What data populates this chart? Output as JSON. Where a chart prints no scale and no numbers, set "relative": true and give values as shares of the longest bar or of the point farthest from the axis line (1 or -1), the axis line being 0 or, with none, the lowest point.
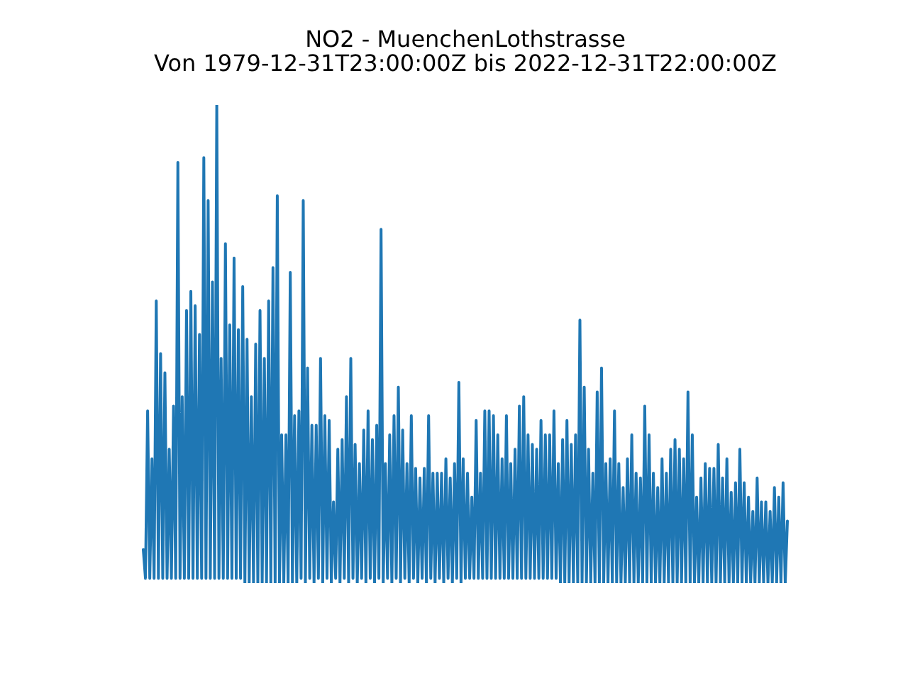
{
  "chart_data": {
    "type": "line",
    "title": "NO2 - MuenchenLothstrasse",
    "subtitle": "Von 1979-12-31T23:00:00Z bis 2022-12-31T22:00:00Z",
    "relative": true,
    "tick_labels": false,
    "color": "#1f77b4",
    "categories": [
      null,
      null,
      null,
      null,
      null,
      null,
      null,
      null,
      null,
      null,
      null,
      null,
      null,
      null,
      null,
      null,
      null,
      null,
      null,
      null,
      null,
      null,
      null,
      null,
      null,
      null,
      null,
      null,
      null,
      null,
      null,
      null,
      null,
      null,
      null,
      null,
      null,
      null,
      null,
      null,
      null,
      null,
      null,
      null,
      null,
      null,
      null,
      null,
      null,
      null,
      null,
      null,
      null,
      null,
      null,
      null,
      null,
      null,
      null,
      null,
      null,
      null,
      null,
      null,
      null,
      null,
      null,
      null,
      null,
      null,
      null,
      null,
      null,
      null,
      null,
      null,
      null,
      null,
      null,
      null,
      null,
      null,
      null,
      null,
      null,
      null,
      null,
      null,
      null,
      null,
      null,
      null,
      null,
      null,
      null,
      null,
      null,
      null,
      null,
      null,
      null,
      null,
      null,
      null,
      null,
      null,
      null,
      null,
      null,
      null,
      null,
      null,
      null,
      null,
      null,
      null,
      null,
      null,
      null,
      null,
      null,
      null,
      null,
      null,
      null,
      null,
      null,
      null,
      null,
      null,
      null,
      null,
      null,
      null,
      null,
      null,
      null,
      null,
      null,
      null,
      null,
      null,
      null,
      null,
      null,
      null,
      null,
      null,
      null,
      null,
      null,
      null,
      null,
      null,
      null,
      null,
      null,
      null,
      null,
      null,
      null,
      null,
      null,
      null,
      null,
      null,
      null,
      null,
      null,
      null,
      null,
      null,
      null,
      null,
      null,
      null,
      null,
      null,
      null,
      null,
      null,
      null,
      null,
      null,
      null,
      null,
      null,
      null,
      null,
      null,
      null,
      null,
      null,
      null,
      null,
      null,
      null,
      null,
      null,
      null,
      null,
      null,
      null,
      null,
      null,
      null,
      null,
      null,
      null,
      null,
      null,
      null,
      null,
      null,
      null,
      null,
      null,
      null,
      null,
      null,
      null,
      null,
      null,
      null,
      null,
      null,
      null,
      null,
      null,
      null,
      null,
      null,
      null,
      null,
      null,
      null,
      null,
      null,
      null,
      null,
      null,
      null,
      null,
      null,
      null,
      null,
      null,
      null,
      null,
      null,
      null,
      null,
      null,
      null,
      null,
      null,
      null,
      null,
      null,
      null,
      null,
      null,
      null,
      null,
      null,
      null,
      null,
      null,
      null,
      null,
      null,
      null,
      null,
      null,
      null,
      null,
      null,
      null,
      null,
      null,
      null,
      null,
      null,
      null,
      null,
      null,
      null,
      null,
      null,
      null,
      null,
      null,
      null,
      null,
      null,
      null,
      null,
      null,
      null
    ],
    "values": [
      0.07,
      0.01,
      0.36,
      0.01,
      0.26,
      0.01,
      0.59,
      0.01,
      0.48,
      0.01,
      0.44,
      0.01,
      0.28,
      0.01,
      0.37,
      0.01,
      0.88,
      0.01,
      0.39,
      0.01,
      0.57,
      0.01,
      0.61,
      0.01,
      0.58,
      0.01,
      0.52,
      0.01,
      0.89,
      0.01,
      0.8,
      0.01,
      0.63,
      0.01,
      1,
      0.01,
      0.47,
      0.01,
      0.71,
      0.01,
      0.54,
      0.01,
      0.68,
      0.01,
      0.53,
      0.01,
      0.62,
      0,
      0.51,
      0,
      0.39,
      0,
      0.5,
      0,
      0.57,
      0,
      0.47,
      0,
      0.59,
      0,
      0.66,
      0,
      0.81,
      0,
      0.31,
      0,
      0.31,
      0,
      0.65,
      0,
      0.35,
      0,
      0.36,
      0.01,
      0.8,
      0,
      0.45,
      0.01,
      0.33,
      0,
      0.33,
      0.01,
      0.47,
      0,
      0.35,
      0.01,
      0.34,
      0,
      0.17,
      0.01,
      0.28,
      0,
      0.3,
      0.01,
      0.39,
      0,
      0.47,
      0.01,
      0.29,
      0,
      0.25,
      0.01,
      0.32,
      0,
      0.36,
      0.01,
      0.3,
      0,
      0.33,
      0.01,
      0.74,
      0,
      0.25,
      0.01,
      0.31,
      0,
      0.35,
      0.01,
      0.41,
      0,
      0.32,
      0.01,
      0.25,
      0,
      0.35,
      0.01,
      0.24,
      0,
      0.22,
      0.01,
      0.24,
      0,
      0.35,
      0.01,
      0.23,
      0,
      0.23,
      0.01,
      0.23,
      0,
      0.26,
      0.01,
      0.22,
      0,
      0.25,
      0.01,
      0.42,
      0,
      0.26,
      0.01,
      0.23,
      0.01,
      0.18,
      0.01,
      0.34,
      0.01,
      0.23,
      0.01,
      0.36,
      0.01,
      0.36,
      0.01,
      0.35,
      0.01,
      0.31,
      0.01,
      0.26,
      0.01,
      0.35,
      0.01,
      0.25,
      0.01,
      0.28,
      0.01,
      0.37,
      0.01,
      0.39,
      0.01,
      0.31,
      0.01,
      0.29,
      0.01,
      0.28,
      0.01,
      0.34,
      0.01,
      0.31,
      0.01,
      0.31,
      0.01,
      0.36,
      0.01,
      0.25,
      0,
      0.3,
      0,
      0.34,
      0,
      0.29,
      0,
      0.31,
      0,
      0.55,
      0,
      0.41,
      0,
      0.28,
      0,
      0.23,
      0,
      0.4,
      0,
      0.45,
      0,
      0.25,
      0,
      0.26,
      0,
      0.36,
      0,
      0.25,
      0,
      0.2,
      0,
      0.26,
      0,
      0.31,
      0,
      0.23,
      0,
      0.22,
      0,
      0.37,
      0,
      0.31,
      0,
      0.23,
      0,
      0.2,
      0,
      0.26,
      0,
      0.23,
      0,
      0.28,
      0,
      0.3,
      0,
      0.28,
      0,
      0.26,
      0,
      0.4,
      0,
      0.31,
      0,
      0.18,
      0,
      0.22,
      0,
      0.25,
      0,
      0.24,
      0,
      0.24,
      0,
      0.29,
      0,
      0.22,
      0,
      0.26,
      0,
      0.19,
      0,
      0.21,
      0,
      0.28,
      0,
      0.21,
      0,
      0.18,
      0,
      0.15,
      0,
      0.22,
      0,
      0.17,
      0,
      0.17,
      0,
      0.15,
      0,
      0.2,
      0,
      0.18,
      0,
      0.21,
      0,
      0.13
    ]
  }
}
